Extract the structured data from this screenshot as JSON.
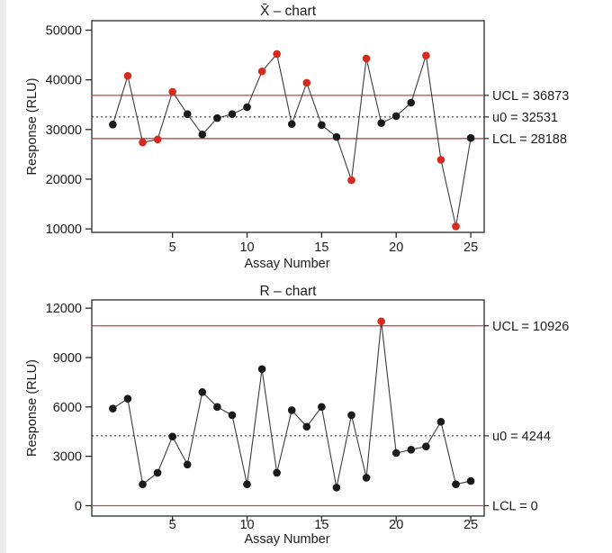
{
  "style": {
    "background": "#ffffff",
    "text_color": "#1a1a1a",
    "axis_color": "#2a2a2a",
    "series_line_color": "#3c3c3c",
    "point_color": "#1a1a1a",
    "out_of_control_point_color": "#d62a1f",
    "limit_line_color": "#c1443e",
    "center_line_color": "#222222"
  },
  "chart_data": [
    {
      "type": "line",
      "chart_kind": "xbar-control-chart",
      "title": "X̄ – chart",
      "xlabel": "Assay Number",
      "ylabel": "Response (RLU)",
      "x": [
        1,
        2,
        3,
        4,
        5,
        6,
        7,
        8,
        9,
        10,
        11,
        12,
        13,
        14,
        15,
        16,
        17,
        18,
        19,
        20,
        21,
        22,
        23,
        24,
        25
      ],
      "values": [
        31000,
        40800,
        27400,
        28000,
        37600,
        33100,
        29000,
        32300,
        33100,
        34500,
        41700,
        45200,
        31100,
        39400,
        30900,
        28500,
        19800,
        44300,
        31300,
        32700,
        35400,
        44900,
        23900,
        10500,
        28300
      ],
      "out_of_control": [
        false,
        true,
        true,
        true,
        true,
        false,
        false,
        false,
        false,
        false,
        true,
        true,
        false,
        true,
        false,
        false,
        true,
        true,
        false,
        false,
        false,
        true,
        true,
        true,
        false
      ],
      "control_lines": {
        "ucl": {
          "value": 36873,
          "label": "UCL = 36873"
        },
        "center": {
          "value": 32531,
          "label": "u0 = 32531"
        },
        "lcl": {
          "value": 28188,
          "label": "LCL = 28188"
        }
      },
      "yticks": [
        10000,
        20000,
        30000,
        40000,
        50000
      ],
      "xticks": [
        5,
        10,
        15,
        20,
        25
      ],
      "ylim": [
        9300,
        51900
      ],
      "xlim": [
        -0.41,
        25.9
      ],
      "grid": false
    },
    {
      "type": "line",
      "chart_kind": "r-control-chart",
      "title": "R – chart",
      "xlabel": "Assay Number",
      "ylabel": "Response (RLU)",
      "x": [
        1,
        2,
        3,
        4,
        5,
        6,
        7,
        8,
        9,
        10,
        11,
        12,
        13,
        14,
        15,
        16,
        17,
        18,
        19,
        20,
        21,
        22,
        23,
        24,
        25
      ],
      "values": [
        5900,
        6500,
        1300,
        2000,
        4200,
        2500,
        6900,
        6000,
        5500,
        1300,
        8300,
        2000,
        5800,
        4800,
        6000,
        1100,
        5500,
        1700,
        11200,
        3200,
        3400,
        3600,
        5100,
        1300,
        1500
      ],
      "out_of_control": [
        false,
        false,
        false,
        false,
        false,
        false,
        false,
        false,
        false,
        false,
        false,
        false,
        false,
        false,
        false,
        false,
        false,
        false,
        true,
        false,
        false,
        false,
        false,
        false,
        false
      ],
      "control_lines": {
        "ucl": {
          "value": 10926,
          "label": "UCL = 10926"
        },
        "center": {
          "value": 4244,
          "label": "u0 = 4244"
        },
        "lcl": {
          "value": 0,
          "label": "LCL = 0"
        }
      },
      "yticks": [
        0,
        3000,
        6000,
        9000,
        12000
      ],
      "xticks": [
        5,
        10,
        15,
        20,
        25
      ],
      "ylim": [
        -630,
        12500
      ],
      "xlim": [
        -0.41,
        25.9
      ],
      "grid": false
    }
  ]
}
